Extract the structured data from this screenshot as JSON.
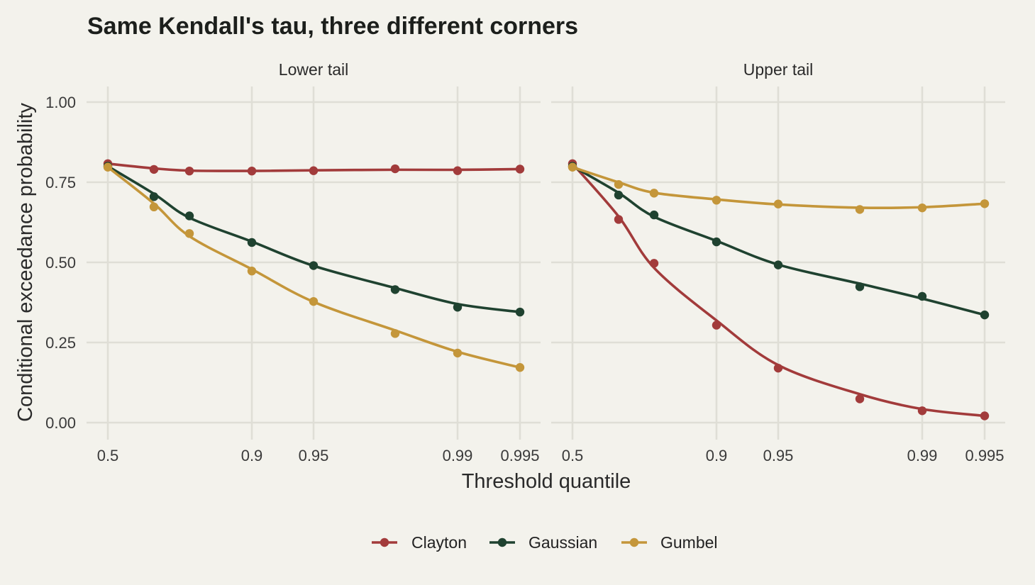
{
  "chart_data": {
    "type": "line",
    "title": "Same Kendall's tau, three different corners",
    "xlabel": "Threshold quantile",
    "ylabel": "Conditional exceedance probability",
    "x_tick_labels": [
      "0.5",
      "0.9",
      "0.95",
      "0.99",
      "0.995"
    ],
    "y_tick_labels": [
      "0.00",
      "0.25",
      "0.50",
      "0.75",
      "1.00"
    ],
    "y_ticks": [
      0,
      0.25,
      0.5,
      0.75,
      1.0
    ],
    "ylim": [
      -0.03,
      1.05
    ],
    "grid": true,
    "legend_position": "bottom",
    "panels": [
      {
        "name": "Lower tail",
        "points": {
          "Clayton": [
            0.808,
            0.79,
            0.785,
            0.785,
            0.786,
            0.792,
            0.786,
            0.791
          ],
          "Gaussian": [
            0.8,
            0.705,
            0.645,
            0.562,
            0.49,
            0.415,
            0.36,
            0.345
          ],
          "Gumbel": [
            0.797,
            0.673,
            0.59,
            0.473,
            0.378,
            0.278,
            0.217,
            0.172
          ]
        }
      },
      {
        "name": "Upper tail",
        "points": {
          "Clayton": [
            0.808,
            0.634,
            0.497,
            0.304,
            0.17,
            0.074,
            0.037,
            0.021
          ],
          "Gaussian": [
            0.8,
            0.71,
            0.648,
            0.564,
            0.492,
            0.424,
            0.394,
            0.336
          ],
          "Gumbel": [
            0.797,
            0.743,
            0.716,
            0.694,
            0.682,
            0.665,
            0.67,
            0.683
          ]
        }
      }
    ],
    "series": [
      {
        "name": "Clayton",
        "color": "#a23b3b"
      },
      {
        "name": "Gaussian",
        "color": "#1f4230"
      },
      {
        "name": "Gumbel",
        "color": "#c4963a"
      }
    ]
  }
}
